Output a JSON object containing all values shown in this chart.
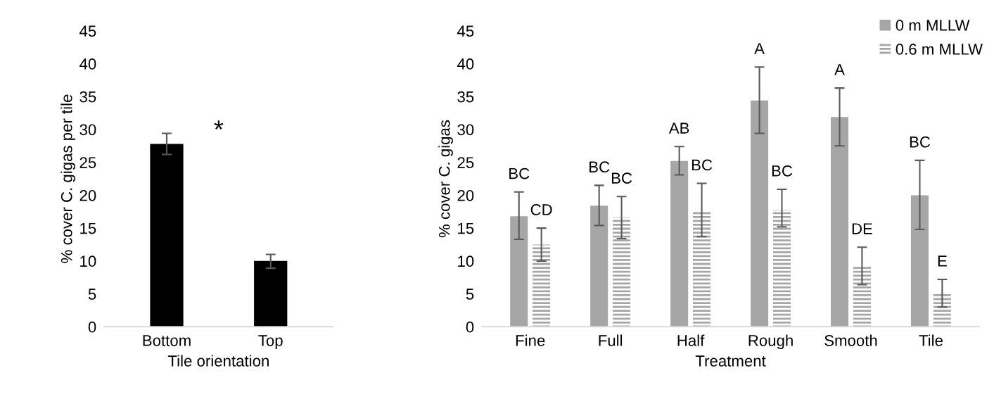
{
  "chart_data": [
    {
      "type": "bar",
      "xlabel": "Tile orientation",
      "ylabel": "% cover C. gigas per tile",
      "categories": [
        "Bottom",
        "Top"
      ],
      "values": [
        27.8,
        10.0
      ],
      "color": "#000000",
      "errors": [
        [
          26.2,
          29.4
        ],
        [
          8.9,
          11.0
        ]
      ],
      "ylim": [
        0,
        45
      ],
      "yticks": [
        0,
        5,
        10,
        15,
        20,
        25,
        30,
        35,
        40,
        45
      ],
      "grid": false,
      "legend": false,
      "annotations": [
        "*"
      ]
    },
    {
      "type": "bar",
      "xlabel": "Treatment",
      "ylabel": "% cover C. gigas",
      "categories": [
        "Fine",
        "Full",
        "Half",
        "Rough",
        "Smooth",
        "Tile"
      ],
      "series": [
        {
          "name": "0 m MLLW",
          "color": "#a6a6a6",
          "values": [
            16.8,
            18.4,
            25.2,
            34.4,
            31.9,
            20.0
          ],
          "errors": [
            [
              13.3,
              20.5
            ],
            [
              15.4,
              21.5
            ],
            [
              23.1,
              27.4
            ],
            [
              29.4,
              39.5
            ],
            [
              27.5,
              36.3
            ],
            [
              14.8,
              25.3
            ]
          ],
          "value_labels": [
            "BC",
            "BC",
            "AB",
            "A",
            "A",
            "BC"
          ]
        },
        {
          "name": "0.6 m MLLW",
          "color": "#a6a6a6",
          "values": [
            12.5,
            16.6,
            17.7,
            17.8,
            9.2,
            5.0
          ],
          "errors": [
            [
              10.0,
              15.0
            ],
            [
              13.4,
              19.8
            ],
            [
              13.7,
              21.8
            ],
            [
              15.2,
              20.9
            ],
            [
              6.4,
              12.1
            ],
            [
              3.0,
              7.2
            ]
          ],
          "value_labels": [
            "CD",
            "BC",
            "BC",
            "BC",
            "DE",
            "E"
          ]
        }
      ],
      "ylim": [
        0,
        45
      ],
      "yticks": [
        0,
        5,
        10,
        15,
        20,
        25,
        30,
        35,
        40,
        45
      ],
      "grid": false,
      "legend": "top right"
    }
  ]
}
